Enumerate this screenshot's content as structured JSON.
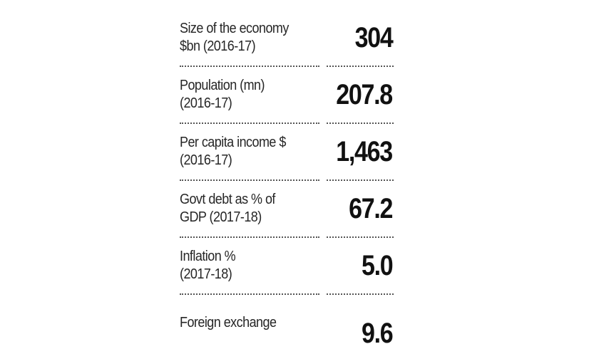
{
  "stats": [
    {
      "label_line1": "Size of the economy",
      "label_line2": "$bn (2016-17)",
      "value": "304"
    },
    {
      "label_line1": "Population (mn)",
      "label_line2": "(2016-17)",
      "value": "207.8"
    },
    {
      "label_line1": "Per capita income $",
      "label_line2": "(2016-17)",
      "value": "1,463"
    },
    {
      "label_line1": "Govt debt as % of",
      "label_line2": "GDP (2017-18)",
      "value": "67.2"
    },
    {
      "label_line1": "Inflation %",
      "label_line2": "(2017-18)",
      "value": "5.0"
    },
    {
      "label_line1": "Foreign exchange",
      "label_line2": "",
      "value": "9.6"
    }
  ]
}
